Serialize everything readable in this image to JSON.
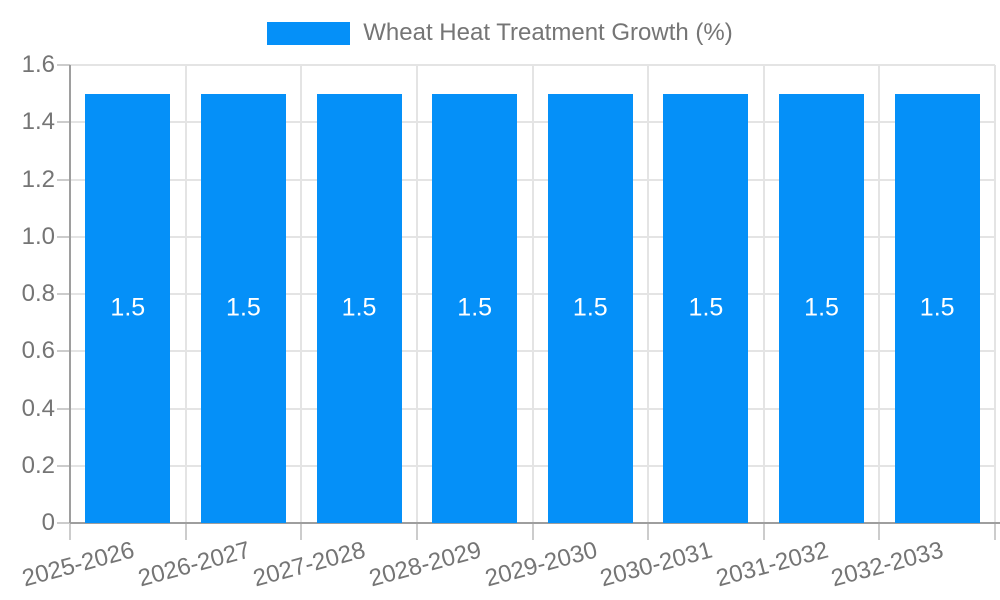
{
  "chart_data": {
    "type": "bar",
    "title": "",
    "legend": {
      "label": "Wheat Heat Treatment Growth (%)",
      "position": "top-center"
    },
    "categories": [
      "2025-2026",
      "2026-2027",
      "2027-2028",
      "2028-2029",
      "2029-2030",
      "2030-2031",
      "2031-2032",
      "2032-2033"
    ],
    "series": [
      {
        "name": "Wheat Heat Treatment Growth (%)",
        "values": [
          1.5,
          1.5,
          1.5,
          1.5,
          1.5,
          1.5,
          1.5,
          1.5
        ],
        "bar_labels": [
          "1.5",
          "1.5",
          "1.5",
          "1.5",
          "1.5",
          "1.5",
          "1.5",
          "1.5"
        ]
      }
    ],
    "xlabel": "",
    "ylabel": "",
    "ylim": [
      0,
      1.6
    ],
    "yticks": [
      {
        "value": 0,
        "label": "0"
      },
      {
        "value": 0.2,
        "label": "0.2"
      },
      {
        "value": 0.4,
        "label": "0.4"
      },
      {
        "value": 0.6,
        "label": "0.6"
      },
      {
        "value": 0.8,
        "label": "0.8"
      },
      {
        "value": 1.0,
        "label": "1.0"
      },
      {
        "value": 1.2,
        "label": "1.2"
      },
      {
        "value": 1.4,
        "label": "1.4"
      },
      {
        "value": 1.6,
        "label": "1.6"
      }
    ],
    "grid": true,
    "x_tick_label_rotation_deg": -15,
    "colors": {
      "bar": "#0590f8",
      "grid": "#e4e4e4",
      "axis": "#9e9e9e",
      "tick": "#cccccc",
      "tick_label": "#757575",
      "bar_label": "#ffffff",
      "background": "#ffffff"
    }
  }
}
